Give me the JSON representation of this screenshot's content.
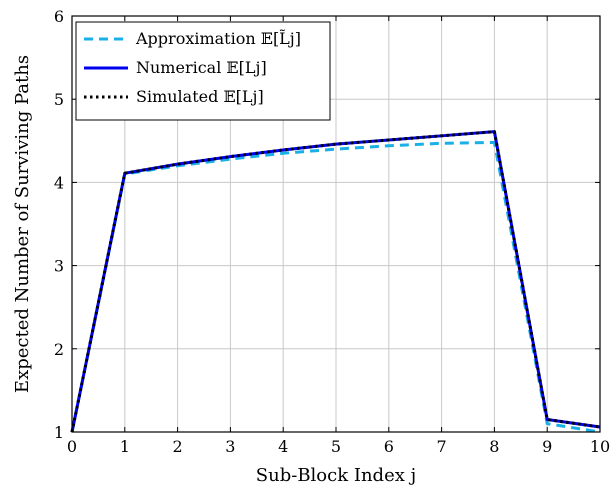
{
  "chart_data": {
    "type": "line",
    "xlabel": "Sub-Block Index j",
    "ylabel": "Expected Number of Surviving Paths",
    "xlim": [
      0,
      10
    ],
    "ylim": [
      1,
      6
    ],
    "xticks": [
      "0",
      "1",
      "2",
      "3",
      "4",
      "5",
      "6",
      "7",
      "8",
      "9",
      "10"
    ],
    "yticks": [
      "1",
      "2",
      "3",
      "4",
      "5",
      "6"
    ],
    "grid": true,
    "legend_position": "top-left",
    "x": [
      0,
      1,
      2,
      3,
      4,
      5,
      6,
      7,
      8,
      9,
      10
    ],
    "series": [
      {
        "name": "Approximation 𝔼[L̃j]",
        "color": "#1ab0e6",
        "style": "dashed",
        "values": [
          1.0,
          4.1,
          4.2,
          4.28,
          4.35,
          4.4,
          4.44,
          4.47,
          4.48,
          1.1,
          1.0
        ]
      },
      {
        "name": "Numerical 𝔼[Lj]",
        "color": "#0000ee",
        "style": "solid",
        "values": [
          1.0,
          4.11,
          4.22,
          4.31,
          4.39,
          4.46,
          4.51,
          4.56,
          4.61,
          1.15,
          1.06
        ]
      },
      {
        "name": "Simulated 𝔼[Lj]",
        "color": "#000000",
        "style": "dotted",
        "values": [
          1.0,
          4.11,
          4.22,
          4.31,
          4.39,
          4.46,
          4.51,
          4.56,
          4.61,
          1.15,
          1.06
        ]
      }
    ]
  }
}
